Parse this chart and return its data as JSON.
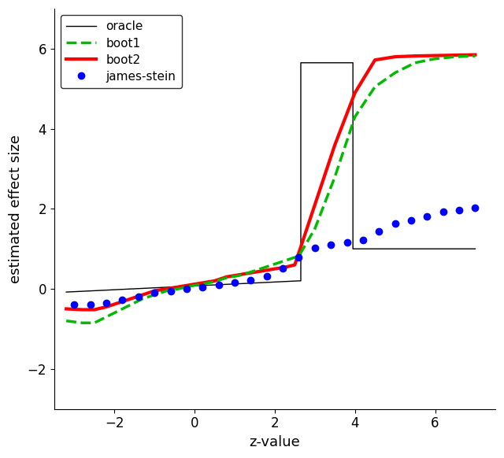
{
  "xlabel": "z-value",
  "ylabel": "estimated effect size",
  "xlim": [
    -3.5,
    7.5
  ],
  "ylim": [
    -3.0,
    7.0
  ],
  "yticks": [
    -2,
    0,
    2,
    4,
    6
  ],
  "xticks": [
    -2,
    0,
    2,
    4,
    6
  ],
  "legend_labels": [
    "boot1",
    "boot2",
    "oracle",
    "james-stein"
  ],
  "boot1_color": "#00bb00",
  "boot2_color": "#ff0000",
  "oracle_color": "#000000",
  "js_color": "#0000ff",
  "boot1_x": [
    -3.2,
    -2.8,
    -2.5,
    -2.2,
    -1.9,
    -1.6,
    -1.3,
    -1.0,
    -0.7,
    -0.4,
    -0.1,
    0.2,
    0.5,
    0.8,
    1.1,
    1.4,
    1.7,
    2.0,
    2.3,
    2.6,
    3.0,
    3.5,
    4.0,
    4.5,
    5.0,
    5.5,
    6.0,
    6.5,
    7.0
  ],
  "boot1_y": [
    -0.8,
    -0.85,
    -0.85,
    -0.7,
    -0.55,
    -0.4,
    -0.25,
    -0.15,
    -0.05,
    0.0,
    0.07,
    0.12,
    0.18,
    0.28,
    0.33,
    0.42,
    0.52,
    0.62,
    0.72,
    0.82,
    1.5,
    2.8,
    4.3,
    5.05,
    5.4,
    5.65,
    5.75,
    5.8,
    5.82
  ],
  "boot2_x": [
    -3.2,
    -2.8,
    -2.5,
    -2.2,
    -1.9,
    -1.6,
    -1.3,
    -1.0,
    -0.7,
    -0.4,
    -0.1,
    0.2,
    0.5,
    0.8,
    1.1,
    1.4,
    1.7,
    2.0,
    2.3,
    2.5,
    2.5,
    3.0,
    3.5,
    4.0,
    4.5,
    5.0,
    5.5,
    6.0,
    6.5,
    7.0
  ],
  "boot2_y": [
    -0.5,
    -0.52,
    -0.52,
    -0.45,
    -0.35,
    -0.25,
    -0.15,
    -0.05,
    0.0,
    0.05,
    0.1,
    0.15,
    0.2,
    0.3,
    0.35,
    0.4,
    0.45,
    0.5,
    0.55,
    0.6,
    0.6,
    2.1,
    3.6,
    4.9,
    5.72,
    5.8,
    5.82,
    5.83,
    5.84,
    5.85
  ],
  "oracle_x": [
    -3.2,
    2.6,
    2.65,
    2.65,
    3.95,
    3.95,
    7.0
  ],
  "oracle_y": [
    -0.08,
    0.2,
    0.2,
    5.65,
    5.65,
    1.0,
    1.0
  ],
  "js_x": [
    -3.0,
    -2.6,
    -2.2,
    -1.8,
    -1.4,
    -1.0,
    -0.6,
    -0.2,
    0.2,
    0.6,
    1.0,
    1.4,
    1.8,
    2.2,
    2.6,
    3.0,
    3.4,
    3.8,
    4.2,
    4.6,
    5.0,
    5.4,
    5.8,
    6.2,
    6.6,
    7.0
  ],
  "js_y": [
    -0.4,
    -0.4,
    -0.35,
    -0.28,
    -0.2,
    -0.1,
    -0.05,
    0.0,
    0.05,
    0.1,
    0.15,
    0.22,
    0.32,
    0.52,
    0.78,
    1.02,
    1.1,
    1.17,
    1.22,
    1.43,
    1.63,
    1.72,
    1.82,
    1.92,
    1.97,
    2.02
  ]
}
